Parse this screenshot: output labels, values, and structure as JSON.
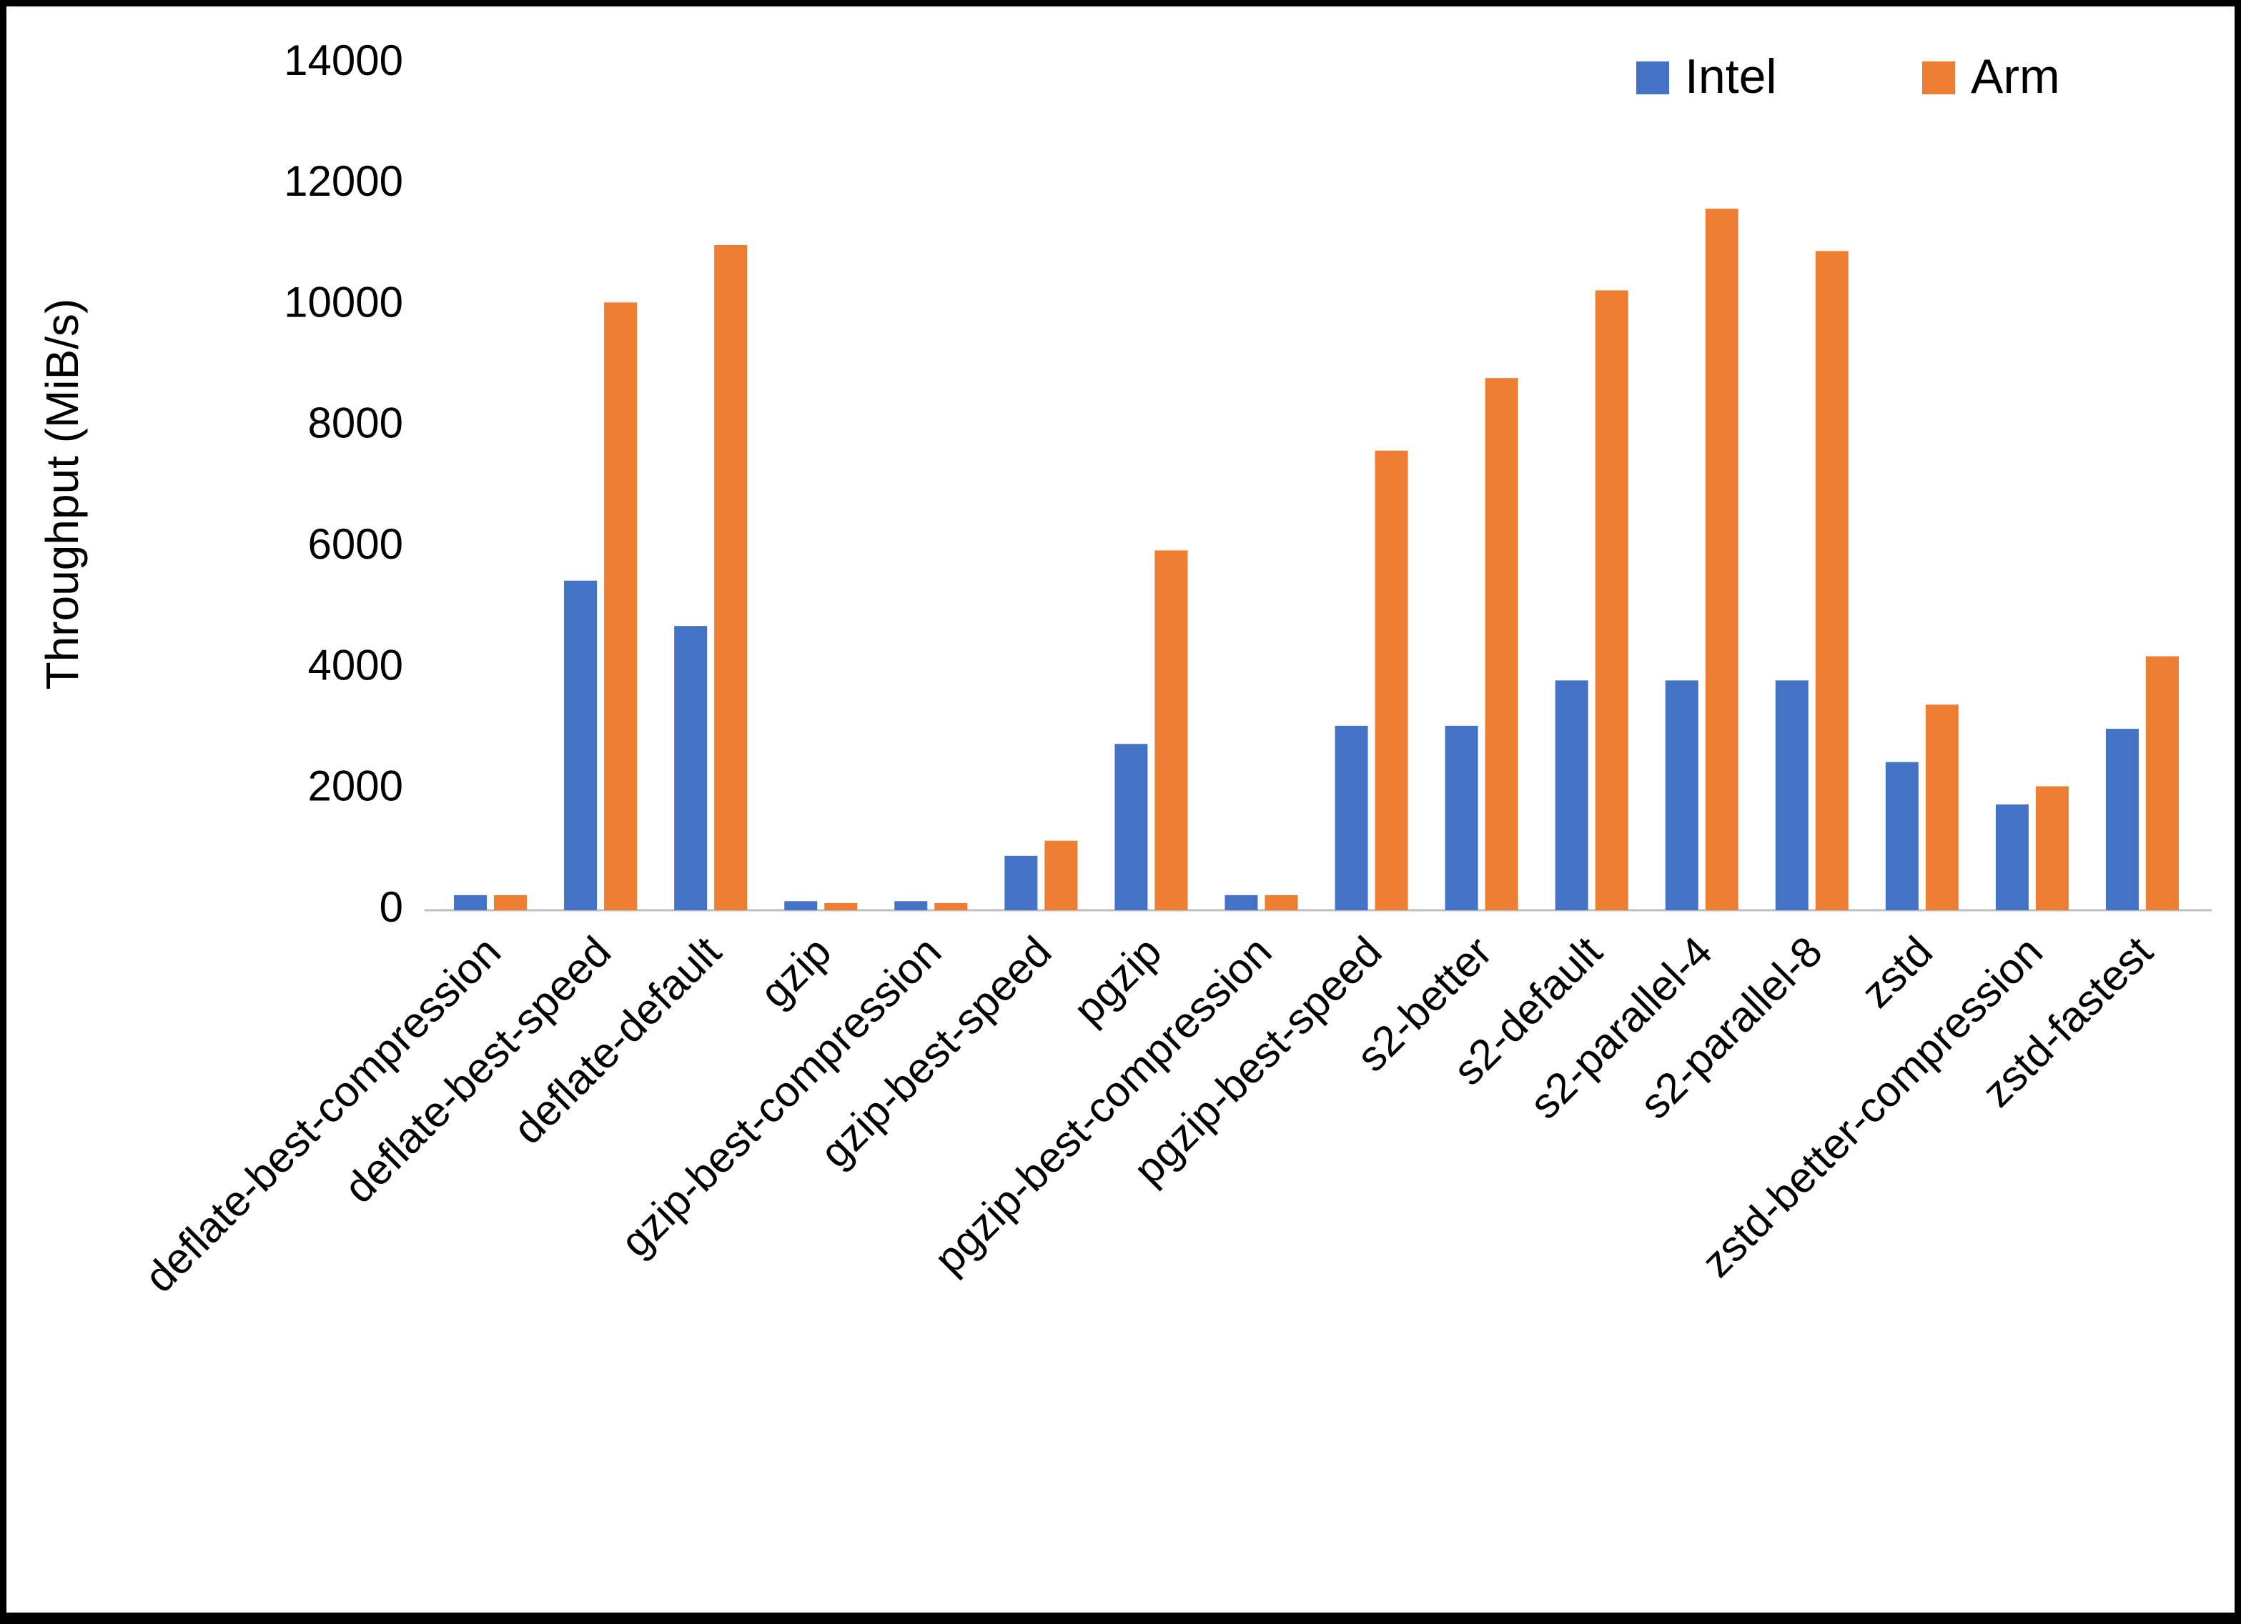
{
  "chart_data": {
    "type": "bar",
    "title": "",
    "xlabel": "",
    "ylabel": "Throughput (MiB/s)",
    "ylim": [
      0,
      14000
    ],
    "ytick_step": 2000,
    "yticks": [
      0,
      2000,
      4000,
      6000,
      8000,
      10000,
      12000,
      14000
    ],
    "grid": false,
    "legend_position": "top-right",
    "categories": [
      "deflate-best-compression",
      "deflate-best-speed",
      "deflate-default",
      "gzip",
      "gzip-best-compression",
      "gzip-best-speed",
      "pgzip",
      "pgzip-best-compression",
      "pgzip-best-speed",
      "s2-better",
      "s2-default",
      "s2-parallel-4",
      "s2-parallel-8",
      "zstd",
      "zstd-better-compression",
      "zstd-fastest"
    ],
    "series": [
      {
        "name": "Intel",
        "color": "#4472C4",
        "values": [
          250,
          5450,
          4700,
          150,
          150,
          900,
          2750,
          250,
          3050,
          3050,
          3800,
          3800,
          3800,
          2450,
          1750,
          3000
        ]
      },
      {
        "name": "Arm",
        "color": "#ED7D31",
        "values": [
          250,
          10050,
          11000,
          120,
          120,
          1150,
          5950,
          250,
          7600,
          8800,
          10250,
          11600,
          10900,
          3400,
          2050,
          4200
        ]
      }
    ]
  }
}
